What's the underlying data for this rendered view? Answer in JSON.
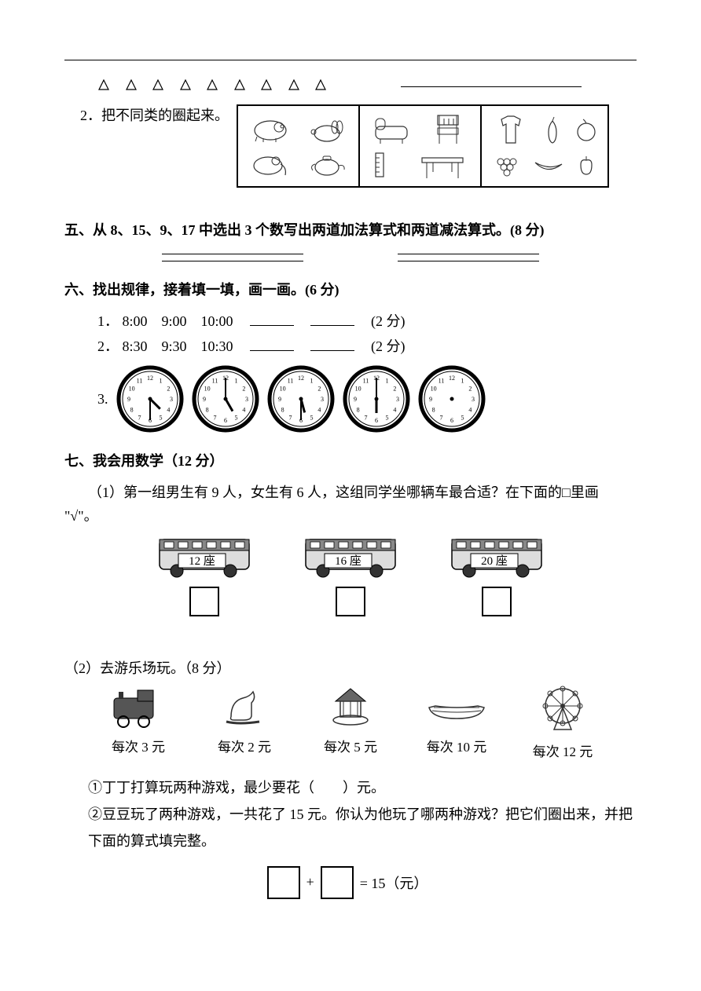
{
  "triangles": {
    "count": 9,
    "stroke": "#000000"
  },
  "q2": {
    "label": "2．把不同类的圈起来。"
  },
  "section5": {
    "heading": "五、从 8、15、9、17 中选出 3 个数写出两道加法算式和两道减法算式。(8 分)"
  },
  "section6": {
    "heading": "六、找出规律，接着填一填，画一画。(6 分)",
    "line1": {
      "num": "1．",
      "vals": [
        "8:00",
        "9:00",
        "10:00"
      ],
      "tail": "(2 分)"
    },
    "line2": {
      "num": "2．",
      "vals": [
        "8:30",
        "9:30",
        "10:30"
      ],
      "tail": "(2 分)"
    },
    "line3_num": "3.",
    "clocks": [
      {
        "hour": 4,
        "min": 30
      },
      {
        "hour": 5,
        "min": 0
      },
      {
        "hour": 5,
        "min": 30
      },
      {
        "hour": 6,
        "min": 0
      },
      {
        "hour": -1,
        "min": -1
      }
    ]
  },
  "section7": {
    "heading": "七、我会用数学（12 分）",
    "q1": {
      "text": "（1）第一组男生有 9 人，女生有 6 人，这组同学坐哪辆车最合适？在下面的□里画",
      "checkmark_label": "\"√\"。",
      "buses": [
        "12 座",
        "16 座",
        "20 座"
      ]
    },
    "q2": {
      "text": "（2）去游乐场玩。（8 分）",
      "items": [
        {
          "price": "每次 3 元"
        },
        {
          "price": "每次 2 元"
        },
        {
          "price": "每次 5 元"
        },
        {
          "price": "每次 10 元"
        },
        {
          "price": "每次 12 元"
        }
      ],
      "sub1": "①丁丁打算玩两种游戏，最少要花（　　）元。",
      "sub2": "②豆豆玩了两种游戏，一共花了 15 元。你认为他玩了哪两种游戏？把它们圈出来，并把下面的算式填完整。",
      "eq_tail": "= 15（元）",
      "plus": "+"
    }
  }
}
